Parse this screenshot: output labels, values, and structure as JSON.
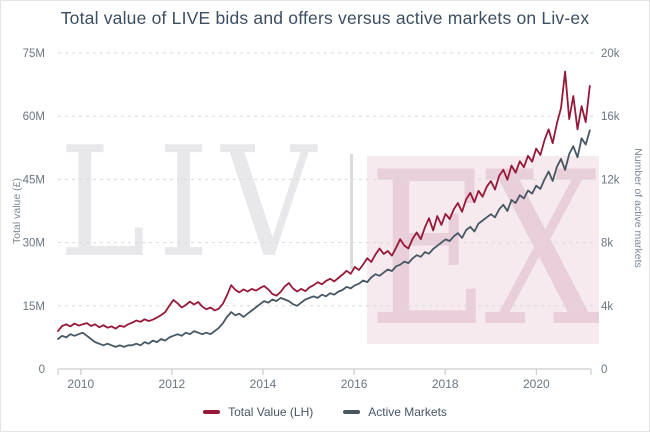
{
  "title": "Total value of LIVE bids and offers versus active markets on Liv-ex",
  "watermark": {
    "left_text": "LIV",
    "right_text": "EX"
  },
  "colors": {
    "title_text": "#3c4e62",
    "total_value_line": "#97193a",
    "active_markets_line": "#475863",
    "grid": "#dadada",
    "watermark_gray": "#e8e8ea",
    "watermark_pink_box": "#f6eaee",
    "watermark_pink_text": "#e9cfda"
  },
  "chart_data": {
    "type": "line",
    "title": "Total value of LIVE bids and offers versus active markets on Liv-ex",
    "grid": "horizontal dashed",
    "legend_position": "bottom center",
    "x": {
      "range": [
        2009.5,
        2021.2
      ],
      "tick_values": [
        2010,
        2012,
        2014,
        2016,
        2018,
        2020
      ],
      "tick_labels": [
        "2010",
        "2012",
        "2014",
        "2016",
        "2018",
        "2020"
      ]
    },
    "y_left": {
      "label": "Total value (£)",
      "max": 75,
      "unit": "millions GBP",
      "tick_values": [
        0,
        15,
        30,
        45,
        60,
        75
      ],
      "tick_labels": [
        "0",
        "15M",
        "30M",
        "45M",
        "60M",
        "75M"
      ]
    },
    "y_right": {
      "label": "Number of active markets",
      "max": 20,
      "unit": "thousands of markets",
      "tick_values": [
        0,
        4,
        8,
        12,
        16,
        20
      ],
      "tick_labels": [
        "0",
        "4k",
        "8k",
        "12k",
        "16k",
        "20k"
      ]
    },
    "series": [
      {
        "name": "Total Value (LH)",
        "axis": "left",
        "unit": "millions GBP",
        "color": "#97193a",
        "x0": 2009.5,
        "dx": 0.0905,
        "values": [
          9.0,
          10.2,
          10.6,
          10.1,
          10.8,
          10.3,
          10.6,
          10.9,
          10.2,
          10.6,
          9.9,
          10.4,
          9.8,
          10.1,
          9.6,
          10.3,
          10.0,
          10.6,
          11.0,
          11.5,
          11.2,
          11.8,
          11.4,
          11.7,
          12.2,
          12.8,
          13.5,
          15.0,
          16.4,
          15.6,
          14.6,
          15.2,
          16.0,
          15.3,
          15.9,
          14.8,
          14.2,
          14.6,
          13.9,
          14.3,
          15.5,
          17.5,
          19.9,
          18.8,
          18.2,
          18.9,
          18.4,
          19.0,
          18.6,
          19.2,
          19.7,
          18.9,
          17.8,
          17.4,
          18.3,
          19.6,
          20.4,
          19.1,
          18.4,
          19.0,
          18.5,
          19.4,
          19.9,
          20.6,
          20.1,
          20.9,
          21.4,
          20.8,
          21.6,
          22.4,
          23.3,
          22.6,
          24.2,
          23.5,
          24.8,
          26.3,
          25.4,
          27.2,
          28.6,
          27.3,
          28.0,
          26.9,
          28.8,
          30.8,
          29.3,
          28.6,
          30.9,
          32.4,
          30.8,
          33.6,
          35.8,
          32.9,
          36.3,
          34.2,
          36.8,
          35.6,
          37.9,
          39.4,
          37.3,
          40.3,
          41.8,
          39.6,
          42.3,
          40.9,
          43.3,
          44.6,
          42.6,
          45.8,
          47.3,
          44.9,
          48.3,
          46.6,
          49.3,
          47.9,
          50.6,
          49.2,
          52.3,
          50.8,
          54.3,
          56.9,
          53.6,
          58.3,
          61.9,
          70.6,
          59.3,
          64.8,
          56.9,
          62.4,
          58.6,
          67.2
        ]
      },
      {
        "name": "Active Markets",
        "axis": "right",
        "unit": "thousands of markets",
        "color": "#475863",
        "x0": 2009.5,
        "dx": 0.0905,
        "values": [
          1.9,
          2.1,
          2.0,
          2.2,
          2.1,
          2.2,
          2.3,
          2.1,
          1.9,
          1.7,
          1.6,
          1.5,
          1.6,
          1.5,
          1.4,
          1.5,
          1.4,
          1.5,
          1.5,
          1.6,
          1.5,
          1.7,
          1.6,
          1.8,
          1.7,
          1.9,
          1.8,
          2.0,
          2.1,
          2.2,
          2.1,
          2.3,
          2.2,
          2.4,
          2.3,
          2.2,
          2.3,
          2.2,
          2.4,
          2.6,
          2.9,
          3.3,
          3.6,
          3.4,
          3.5,
          3.3,
          3.5,
          3.7,
          3.9,
          4.1,
          4.3,
          4.2,
          4.4,
          4.3,
          4.5,
          4.4,
          4.3,
          4.1,
          4.0,
          4.2,
          4.4,
          4.5,
          4.6,
          4.5,
          4.7,
          4.6,
          4.8,
          4.7,
          4.9,
          5.0,
          5.2,
          5.1,
          5.3,
          5.4,
          5.6,
          5.5,
          5.8,
          6.0,
          5.9,
          6.1,
          6.3,
          6.2,
          6.5,
          6.6,
          6.8,
          6.7,
          7.0,
          7.2,
          7.1,
          7.4,
          7.3,
          7.6,
          7.8,
          8.0,
          8.2,
          8.1,
          8.4,
          8.6,
          8.3,
          8.8,
          9.0,
          8.7,
          9.2,
          9.4,
          9.6,
          9.8,
          9.6,
          10.1,
          10.4,
          10.0,
          10.7,
          10.5,
          11.0,
          10.8,
          11.3,
          11.1,
          11.6,
          11.4,
          12.0,
          12.5,
          11.9,
          12.8,
          13.3,
          12.6,
          13.6,
          14.1,
          13.4,
          14.6,
          14.2,
          15.1
        ]
      }
    ],
    "legend": [
      "Total Value (LH)",
      "Active Markets"
    ]
  }
}
